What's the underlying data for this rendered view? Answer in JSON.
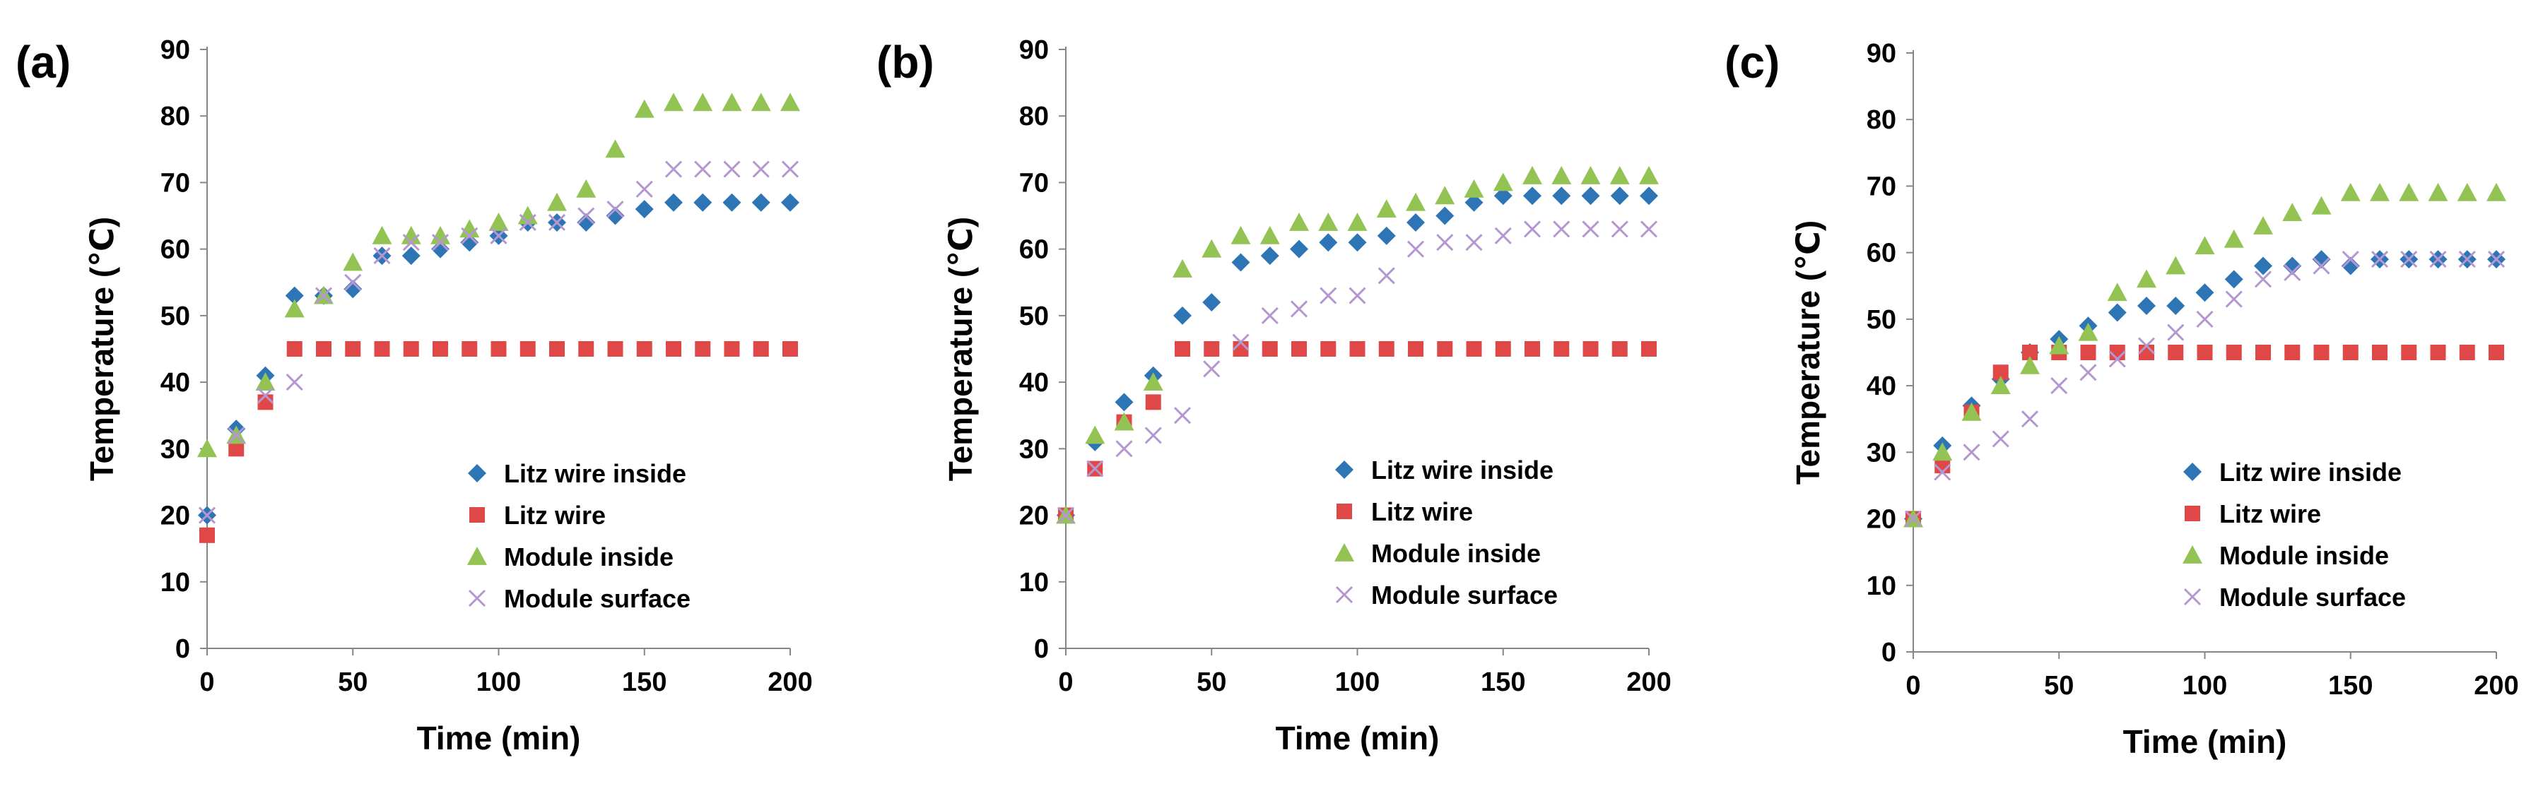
{
  "series_style": [
    {
      "name": "Litz wire inside",
      "marker": "diamond",
      "color": "#2E75B6"
    },
    {
      "name": "Litz wire",
      "marker": "square",
      "color": "#E04848"
    },
    {
      "name": "Module inside",
      "marker": "triangle",
      "color": "#92C353"
    },
    {
      "name": "Module surface",
      "marker": "x",
      "color": "#B497D0"
    }
  ],
  "chart_data": [
    {
      "panel": "(a)",
      "type": "scatter",
      "xlabel": "Time (min)",
      "ylabel": "Temperature (℃)",
      "xlim": [
        0,
        200
      ],
      "ylim": [
        0,
        90
      ],
      "xticks": [
        0,
        50,
        100,
        150,
        200
      ],
      "yticks": [
        0,
        10,
        20,
        30,
        40,
        50,
        60,
        70,
        80,
        90
      ],
      "legend_position": "bottom-right",
      "x": [
        0,
        10,
        20,
        30,
        40,
        50,
        60,
        70,
        80,
        90,
        100,
        110,
        120,
        130,
        140,
        150,
        160,
        170,
        180,
        190,
        200
      ],
      "series": [
        {
          "name": "Litz wire inside",
          "values": [
            20,
            33,
            41,
            53,
            53,
            54,
            59,
            59,
            60,
            61,
            62,
            64,
            64,
            64,
            65,
            66,
            67,
            67,
            67,
            67,
            67
          ]
        },
        {
          "name": "Litz wire",
          "values": [
            17,
            30,
            37,
            45,
            45,
            45,
            45,
            45,
            45,
            45,
            45,
            45,
            45,
            45,
            45,
            45,
            45,
            45,
            45,
            45,
            45
          ]
        },
        {
          "name": "Module inside",
          "values": [
            30,
            32,
            40,
            51,
            53,
            58,
            62,
            62,
            62,
            63,
            64,
            65,
            67,
            69,
            75,
            81,
            82,
            82,
            82,
            82,
            82
          ]
        },
        {
          "name": "Module surface",
          "values": [
            20,
            32,
            38,
            40,
            53,
            55,
            59,
            61,
            61,
            62,
            62,
            64,
            64,
            65,
            66,
            69,
            72,
            72,
            72,
            72,
            72
          ]
        }
      ]
    },
    {
      "panel": "(b)",
      "type": "scatter",
      "xlabel": "Time (min)",
      "ylabel": "Temperature (℃)",
      "xlim": [
        0,
        200
      ],
      "ylim": [
        0,
        90
      ],
      "xticks": [
        0,
        50,
        100,
        150,
        200
      ],
      "yticks": [
        0,
        10,
        20,
        30,
        40,
        50,
        60,
        70,
        80,
        90
      ],
      "legend_position": "bottom-right",
      "x": [
        0,
        10,
        20,
        30,
        40,
        50,
        60,
        70,
        80,
        90,
        100,
        110,
        120,
        130,
        140,
        150,
        160,
        170,
        180,
        190,
        200
      ],
      "series": [
        {
          "name": "Litz wire inside",
          "values": [
            20,
            31,
            37,
            41,
            50,
            52,
            58,
            59,
            60,
            61,
            61,
            62,
            64,
            65,
            67,
            68,
            68,
            68,
            68,
            68,
            68
          ]
        },
        {
          "name": "Litz wire",
          "values": [
            20,
            27,
            34,
            37,
            45,
            45,
            45,
            45,
            45,
            45,
            45,
            45,
            45,
            45,
            45,
            45,
            45,
            45,
            45,
            45,
            45
          ]
        },
        {
          "name": "Module inside",
          "values": [
            20,
            32,
            34,
            40,
            57,
            60,
            62,
            62,
            64,
            64,
            64,
            66,
            67,
            68,
            69,
            70,
            71,
            71,
            71,
            71,
            71
          ]
        },
        {
          "name": "Module surface",
          "values": [
            20,
            27,
            30,
            32,
            35,
            42,
            46,
            50,
            51,
            53,
            53,
            56,
            60,
            61,
            61,
            62,
            63,
            63,
            63,
            63,
            63
          ]
        }
      ]
    },
    {
      "panel": "(c)",
      "type": "scatter",
      "xlabel": "Time (min)",
      "ylabel": "Temperature (℃)",
      "xlim": [
        0,
        200
      ],
      "ylim": [
        0,
        90
      ],
      "xticks": [
        0,
        50,
        100,
        150,
        200
      ],
      "yticks": [
        0,
        10,
        20,
        30,
        40,
        50,
        60,
        70,
        80,
        90
      ],
      "legend_position": "bottom-right",
      "x": [
        0,
        10,
        20,
        30,
        40,
        50,
        60,
        70,
        80,
        90,
        100,
        110,
        120,
        130,
        140,
        150,
        160,
        170,
        180,
        190,
        200
      ],
      "series": [
        {
          "name": "Litz wire inside",
          "values": [
            20,
            31,
            37,
            41,
            45,
            47,
            49,
            51,
            52,
            52,
            54,
            56,
            58,
            58,
            59,
            58,
            59,
            59,
            59,
            59,
            59
          ]
        },
        {
          "name": "Litz wire",
          "values": [
            20,
            28,
            36,
            42,
            45,
            45,
            45,
            45,
            45,
            45,
            45,
            45,
            45,
            45,
            45,
            45,
            45,
            45,
            45,
            45,
            45
          ]
        },
        {
          "name": "Module inside",
          "values": [
            20,
            30,
            36,
            40,
            43,
            46,
            48,
            54,
            56,
            58,
            61,
            62,
            64,
            66,
            67,
            69,
            69,
            69,
            69,
            69,
            69
          ]
        },
        {
          "name": "Module surface",
          "values": [
            20,
            27,
            30,
            32,
            35,
            40,
            42,
            44,
            46,
            48,
            50,
            53,
            56,
            57,
            58,
            59,
            59,
            59,
            59,
            59,
            59
          ]
        }
      ]
    }
  ]
}
